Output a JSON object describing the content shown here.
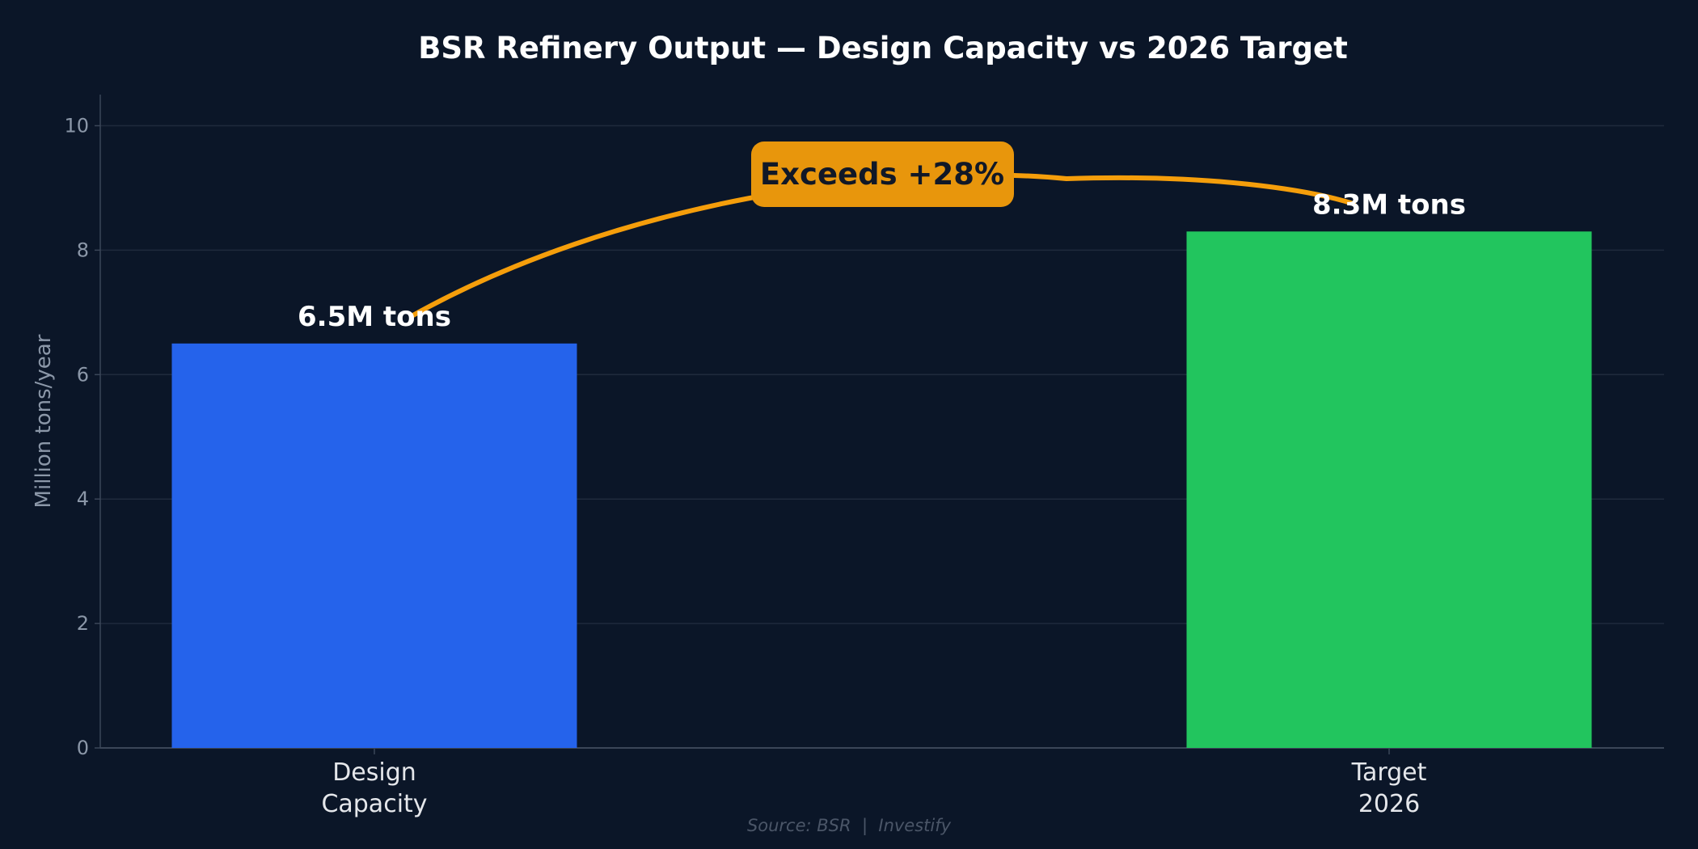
{
  "chart_data": {
    "type": "bar",
    "title": "BSR Refinery Output — Design Capacity vs 2026 Target",
    "ylabel": "Million tons/year",
    "xlabel": "",
    "categories": [
      [
        "Design",
        "Capacity"
      ],
      [
        "Target",
        "2026"
      ]
    ],
    "values": [
      6.5,
      8.3
    ],
    "data_labels": [
      "6.5M tons",
      "8.3M tons"
    ],
    "colors": [
      "#2563eb",
      "#22c55e"
    ],
    "ylim": [
      0,
      10.5
    ],
    "yticks": [
      0,
      2,
      4,
      6,
      8,
      10
    ],
    "grid": true,
    "annotation": {
      "text": "Exceeds +28%",
      "color": "#f59e0b",
      "box_color": "#e8960c"
    },
    "source": "Source: BSR  |  Investify",
    "background": "#0b1628"
  }
}
